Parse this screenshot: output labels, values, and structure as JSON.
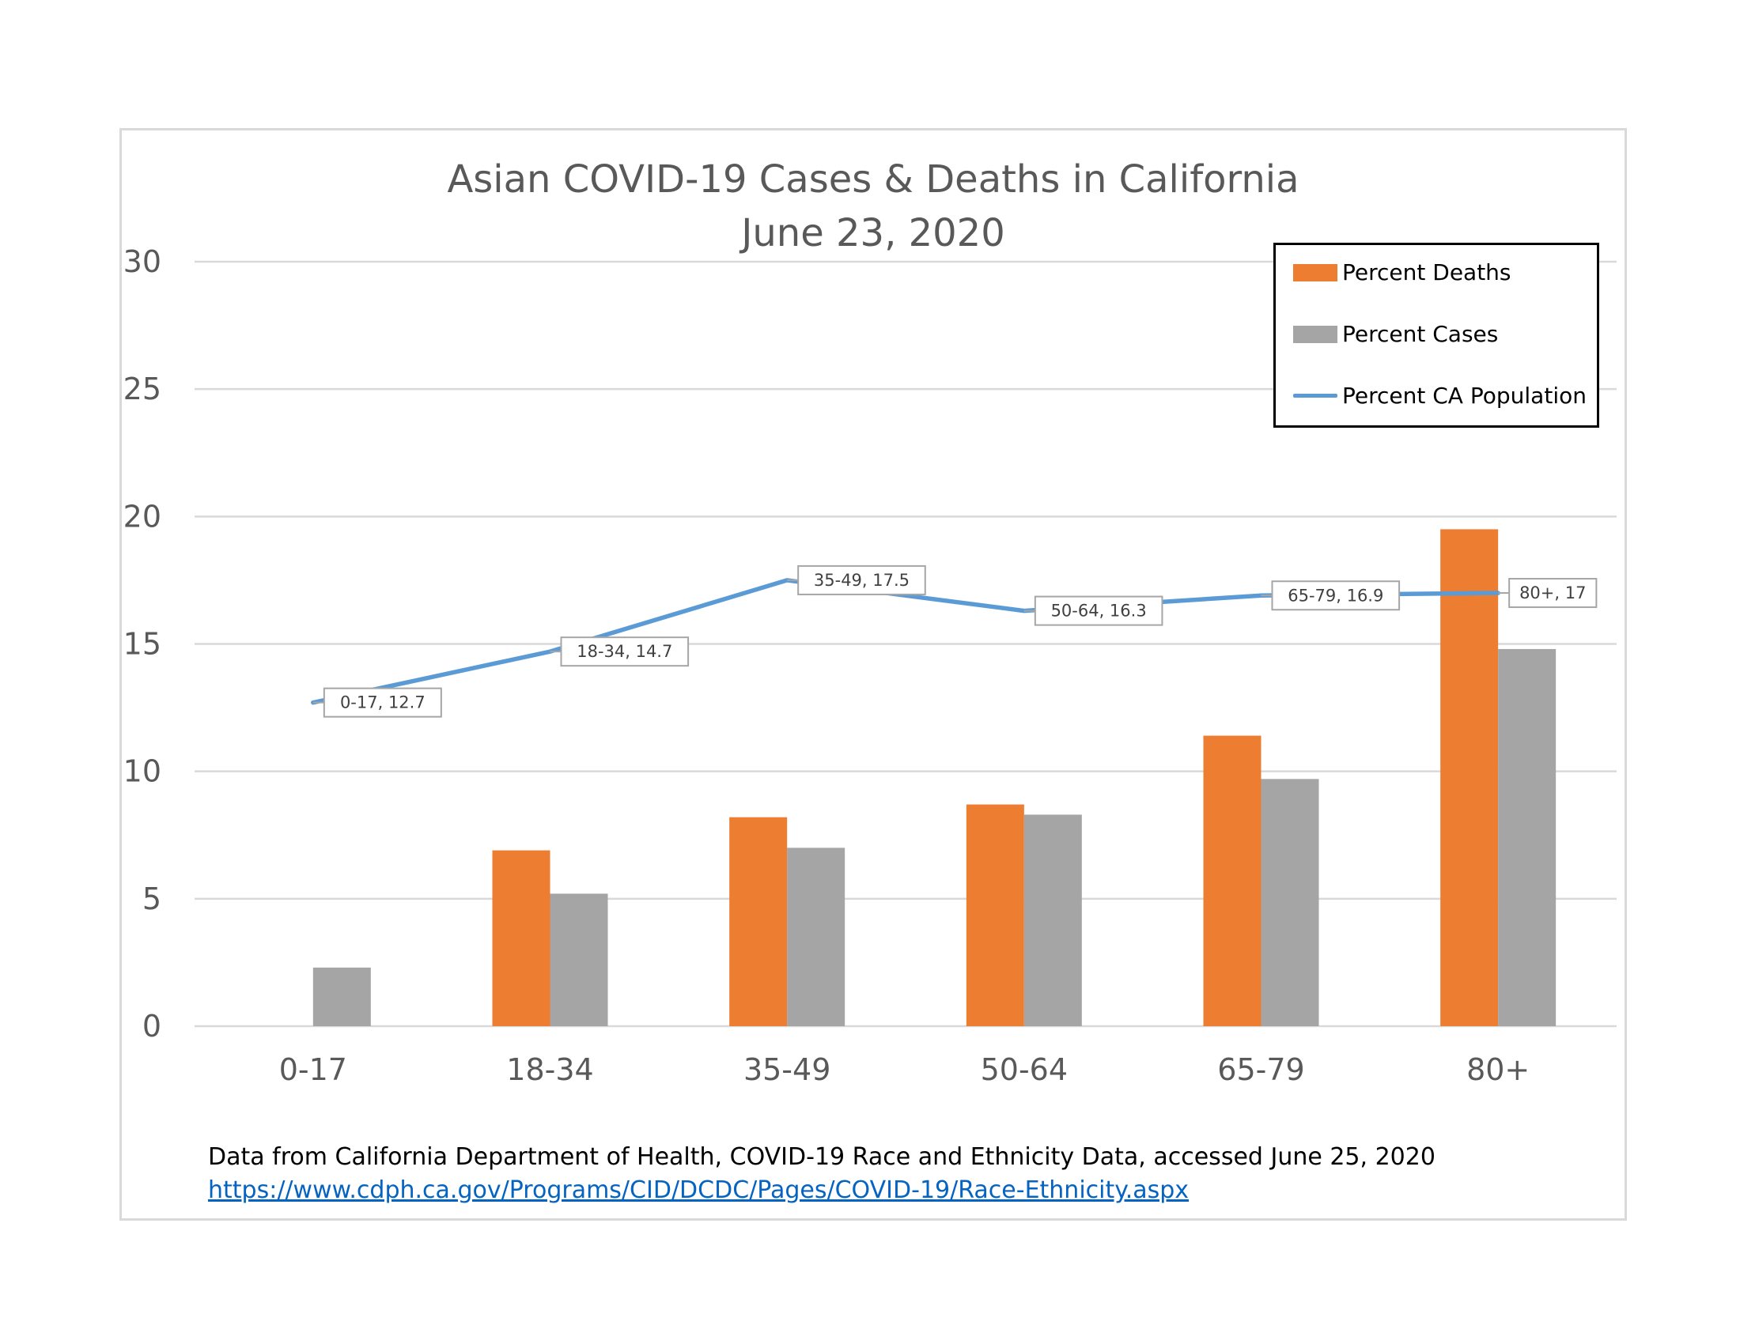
{
  "chart_data": {
    "type": "bar",
    "title": "Asian COVID-19 Cases & Deaths in California",
    "subtitle": "June 23, 2020",
    "categories": [
      "0-17",
      "18-34",
      "35-49",
      "50-64",
      "65-79",
      "80+"
    ],
    "series": [
      {
        "name": "Percent Deaths",
        "kind": "bar",
        "color": "#ed7d31",
        "values": [
          0,
          6.9,
          8.2,
          8.7,
          11.4,
          19.5
        ]
      },
      {
        "name": "Percent Cases",
        "kind": "bar",
        "color": "#a5a5a5",
        "values": [
          2.3,
          5.2,
          7.0,
          8.3,
          9.7,
          14.8
        ]
      },
      {
        "name": "Percent CA Population",
        "kind": "line",
        "color": "#5b9bd5",
        "values": [
          12.7,
          14.7,
          17.5,
          16.3,
          16.9,
          17
        ],
        "data_labels": [
          "0-17, 12.7",
          "18-34, 14.7",
          "35-49, 17.5",
          "50-64, 16.3",
          "65-79, 16.9",
          "80+, 17"
        ]
      }
    ],
    "ylim": [
      0,
      30
    ],
    "yticks": [
      0,
      5,
      10,
      15,
      20,
      25,
      30
    ],
    "grid": true,
    "legend_position": "top-right",
    "xlabel": "",
    "ylabel": ""
  },
  "source": {
    "note": "Data from California Department of Health, COVID-19 Race and Ethnicity Data, accessed June 25, 2020",
    "link": "https://www.cdph.ca.gov/Programs/CID/DCDC/Pages/COVID-19/Race-Ethnicity.aspx"
  }
}
